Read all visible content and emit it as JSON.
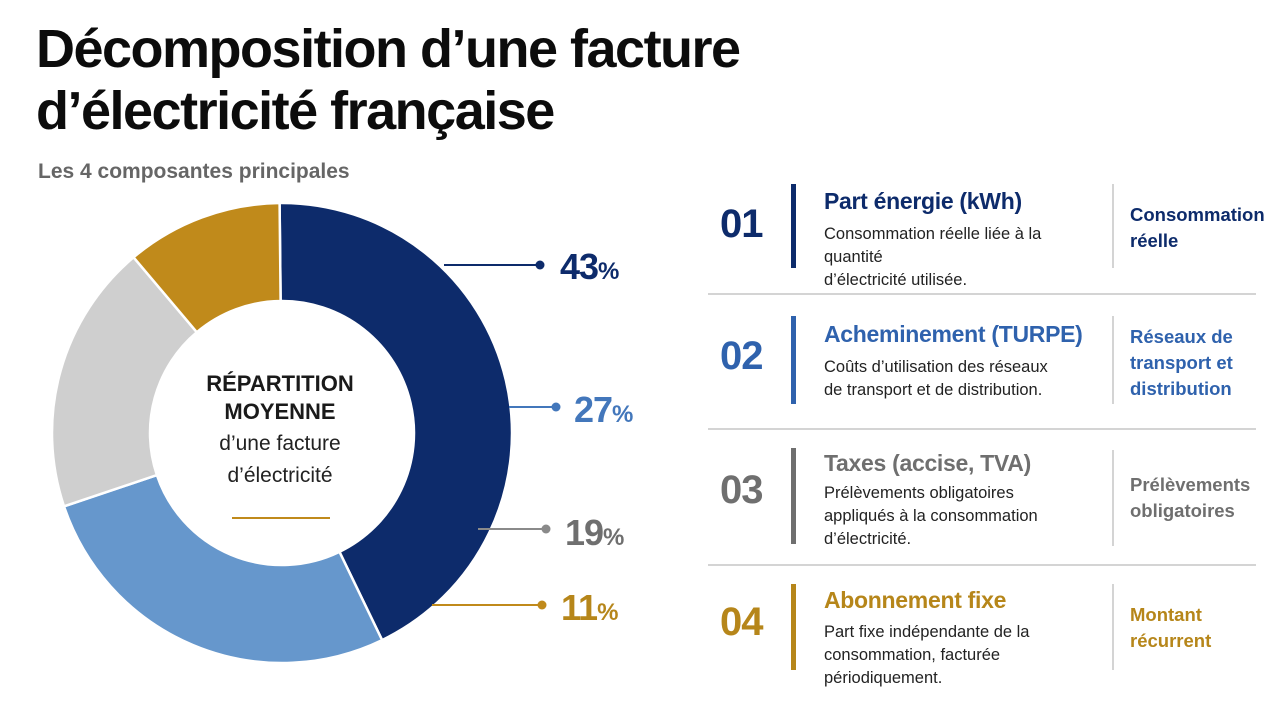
{
  "header": {
    "title_line1": "Décomposition d’une facture",
    "title_line2": "d’électricité française",
    "subtitle": "Les 4 composantes principales"
  },
  "donut_center": {
    "line1": "RÉPARTITION",
    "line2": "MOYENNE",
    "line3": "d’une facture",
    "line4": "d’électricité"
  },
  "chart_data": {
    "type": "pie",
    "categories": [
      "Part énergie (kWh)",
      "Acheminement (TURPE)",
      "Taxes (accise, TVA)",
      "Abonnement fixe"
    ],
    "values": [
      43,
      27,
      19,
      11
    ],
    "value_labels": [
      "43",
      "27",
      "19",
      "11"
    ],
    "unit": "%",
    "colors": [
      "#0d2b6b",
      "#6697cc",
      "#cfcfcf",
      "#c08a1b"
    ]
  },
  "components": [
    {
      "num": "01",
      "title": "Part énergie (kWh)",
      "desc_line1": "Consommation réelle liée à la quantité",
      "desc_line2": "d’électricité utilisée.",
      "desc_line3": "",
      "tag_line1": "Consommation",
      "tag_line2": "réelle",
      "tag_line3": "",
      "color": "#0d2b6b",
      "tag_color": "#0d2b6b"
    },
    {
      "num": "02",
      "title": "Acheminement (TURPE)",
      "desc_line1": "Coûts d’utilisation des réseaux",
      "desc_line2": "de transport et de distribution.",
      "desc_line3": "",
      "tag_line1": "Réseaux de",
      "tag_line2": "transport et",
      "tag_line3": "distribution",
      "color": "#2f62ad",
      "tag_color": "#2f62ad"
    },
    {
      "num": "03",
      "title": "Taxes (accise, TVA)",
      "desc_line1": "Prélèvements obligatoires",
      "desc_line2": "appliqués à la consommation",
      "desc_line3": "d’électricité.",
      "tag_line1": "Prélèvements",
      "tag_line2": "obligatoires",
      "tag_line3": "",
      "color": "#6f6f6f",
      "tag_color": "#6f6f6f"
    },
    {
      "num": "04",
      "title": "Abonnement fixe",
      "desc_line1": "Part fixe indépendante de la",
      "desc_line2": "consommation, facturée périodiquement.",
      "desc_line3": "",
      "tag_line1": "Montant",
      "tag_line2": "récurrent",
      "tag_line3": "",
      "color": "#b6861a",
      "tag_color": "#b6861a"
    }
  ]
}
